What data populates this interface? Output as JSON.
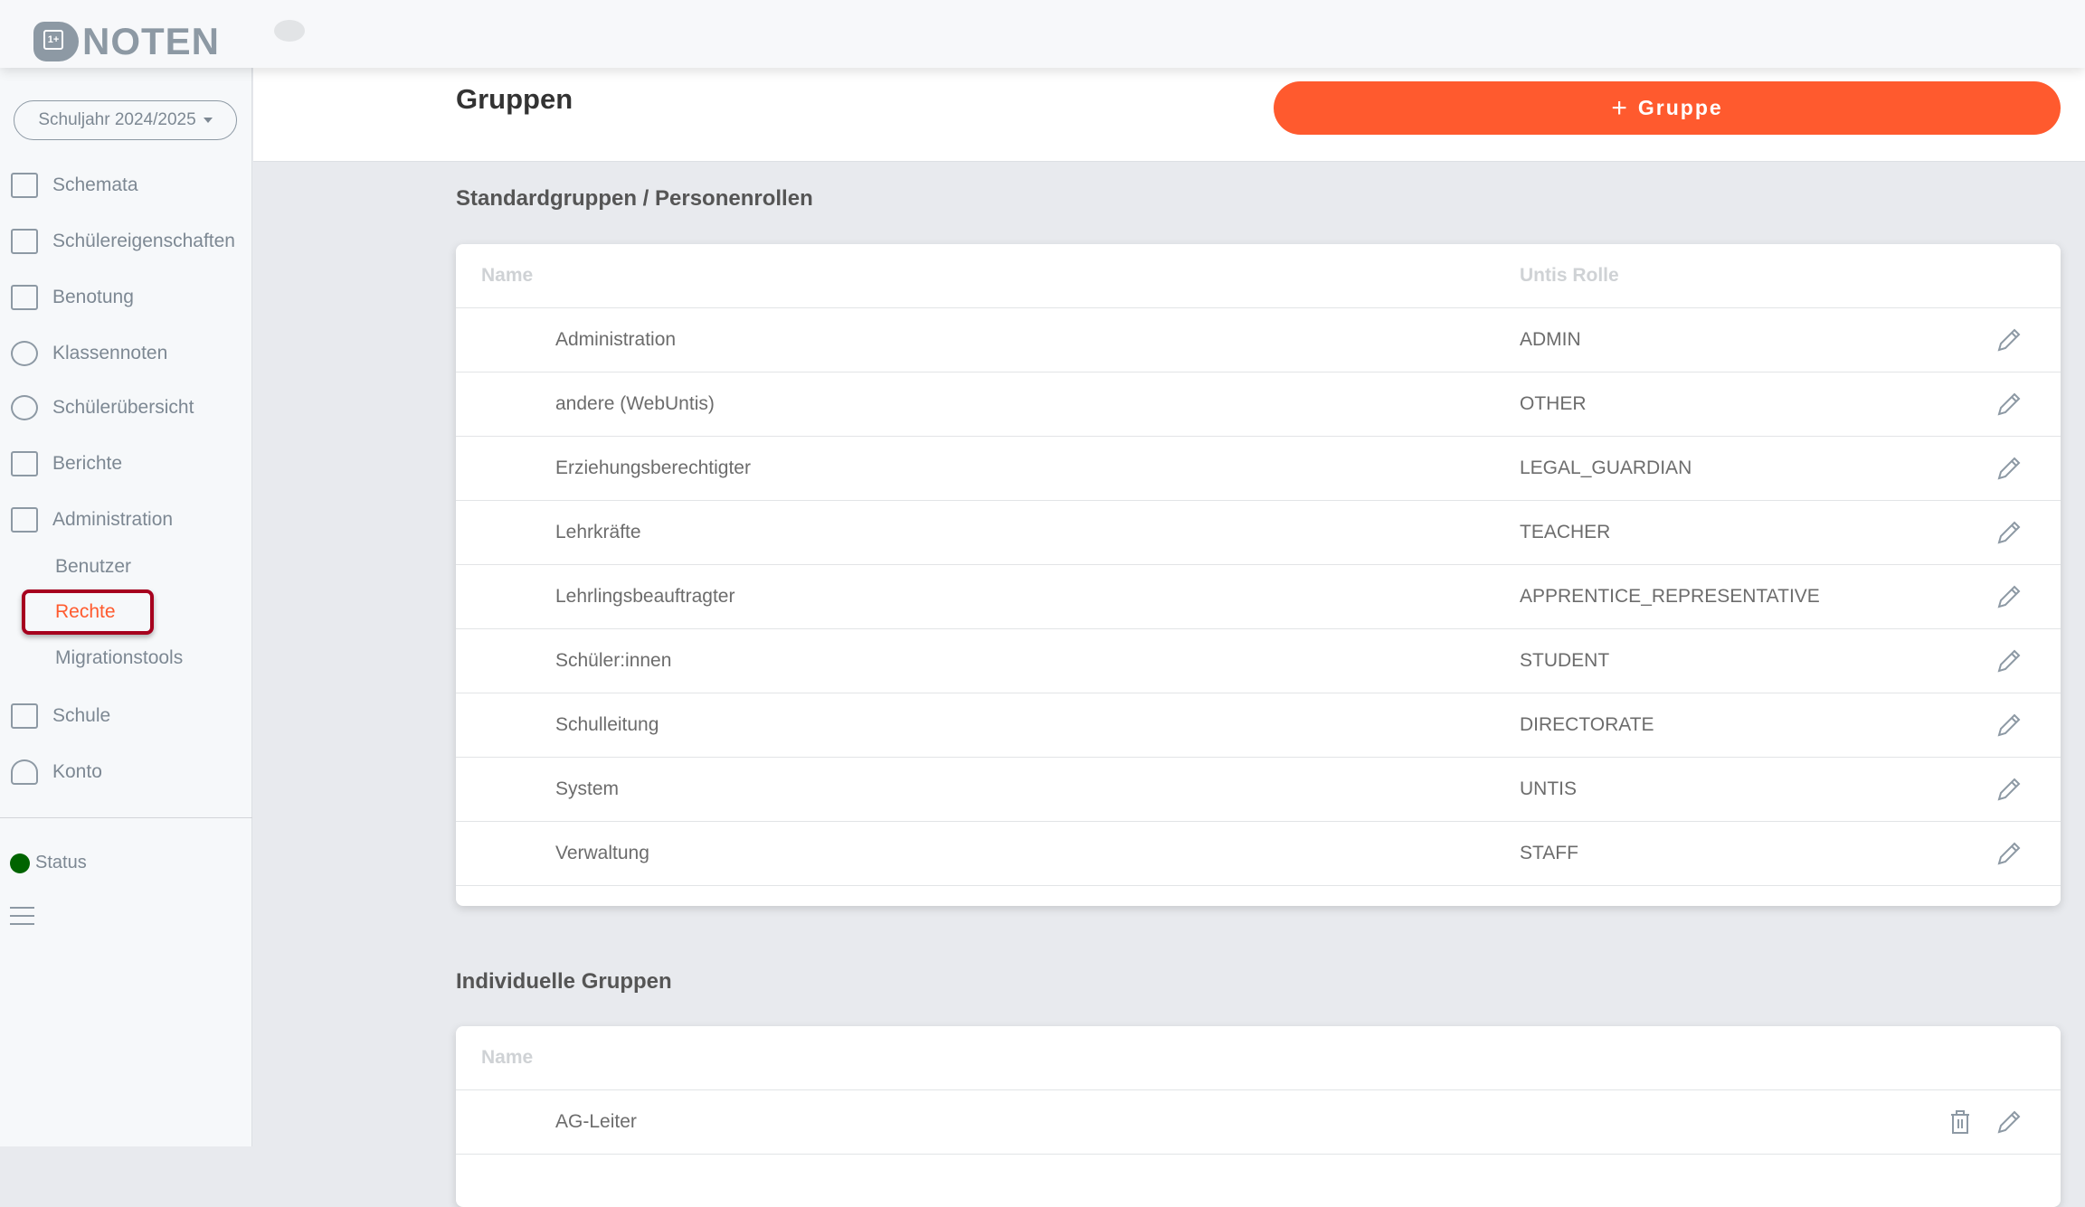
{
  "header": {
    "logo_text": "NOTEN",
    "logo_badge": "1+"
  },
  "sidebar": {
    "year_selector": "Schuljahr 2024/2025",
    "items": [
      {
        "label": "Schemata"
      },
      {
        "label": "Schülereigenschaften"
      },
      {
        "label": "Benotung"
      },
      {
        "label": "Klassennoten"
      },
      {
        "label": "Schülerübersicht"
      },
      {
        "label": "Berichte"
      },
      {
        "label": "Administration"
      }
    ],
    "subitems": [
      {
        "label": "Benutzer"
      },
      {
        "label": "Rechte",
        "active": true
      },
      {
        "label": "Migrationstools"
      }
    ],
    "items2": [
      {
        "label": "Schule"
      },
      {
        "label": "Konto"
      }
    ],
    "status": "Status",
    "status_color": "#006400"
  },
  "main": {
    "title": "Gruppen",
    "add_button": "Gruppe",
    "accent": "#ff5a2e",
    "standard": {
      "heading": "Standardgruppen / Personenrollen",
      "col_name": "Name",
      "col_role": "Untis Rolle",
      "rows": [
        {
          "name": "Administration",
          "role": "ADMIN"
        },
        {
          "name": "andere (WebUntis)",
          "role": "OTHER"
        },
        {
          "name": "Erziehungsberechtigter",
          "role": "LEGAL_GUARDIAN"
        },
        {
          "name": "Lehrkräfte",
          "role": "TEACHER"
        },
        {
          "name": "Lehrlingsbeauftragter",
          "role": "APPRENTICE_REPRESENTATIVE"
        },
        {
          "name": "Schüler:innen",
          "role": "STUDENT"
        },
        {
          "name": "Schulleitung",
          "role": "DIRECTORATE"
        },
        {
          "name": "System",
          "role": "UNTIS"
        },
        {
          "name": "Verwaltung",
          "role": "STAFF"
        }
      ]
    },
    "individual": {
      "heading": "Individuelle Gruppen",
      "col_name": "Name",
      "rows": [
        {
          "name": "AG-Leiter"
        }
      ]
    }
  }
}
